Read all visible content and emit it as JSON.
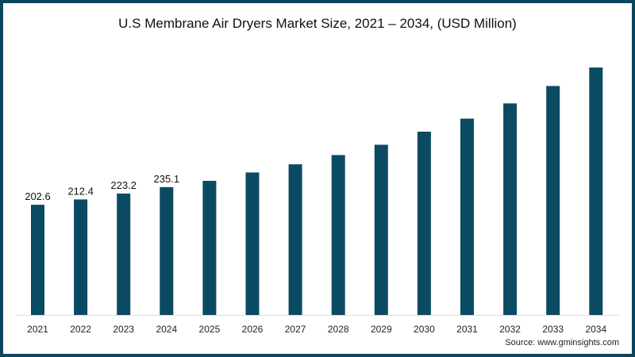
{
  "chart_data": {
    "type": "bar",
    "title": "U.S Membrane Air Dryers Market Size, 2021 – 2034, (USD Million)",
    "xlabel": "",
    "ylabel": "",
    "ylim": [
      0,
      470
    ],
    "grid": false,
    "categories": [
      "2021",
      "2022",
      "2023",
      "2024",
      "2025",
      "2026",
      "2027",
      "2028",
      "2029",
      "2030",
      "2031",
      "2032",
      "2033",
      "2034"
    ],
    "values": [
      202.6,
      212.4,
      223.2,
      235.1,
      246.6,
      262,
      277,
      294,
      313,
      337,
      361,
      389,
      421,
      455
    ],
    "data_labels": [
      "202.6",
      "212.4",
      "223.2",
      "235.1",
      null,
      null,
      null,
      null,
      null,
      null,
      null,
      null,
      null,
      null
    ],
    "bar_color": "#0b4a63"
  },
  "source": "Source: www.gminsights.com"
}
